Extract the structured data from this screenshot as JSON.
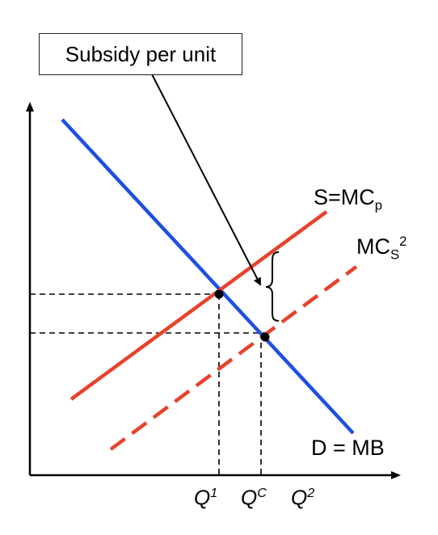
{
  "callout": {
    "text": "Subsidy per unit"
  },
  "curves": {
    "supply": {
      "label_main": "S=MC",
      "label_sub": "p",
      "color": "#e8412c"
    },
    "social": {
      "label_main": "MC",
      "label_sub": "S",
      "label_sup": "2",
      "color": "#e8412c"
    },
    "demand": {
      "label": "D = MB",
      "color": "#1f4fe0"
    }
  },
  "quantities": [
    {
      "main": "Q",
      "sup": "1"
    },
    {
      "main": "Q",
      "sup": "C"
    },
    {
      "main": "Q",
      "sup": "2"
    }
  ]
}
